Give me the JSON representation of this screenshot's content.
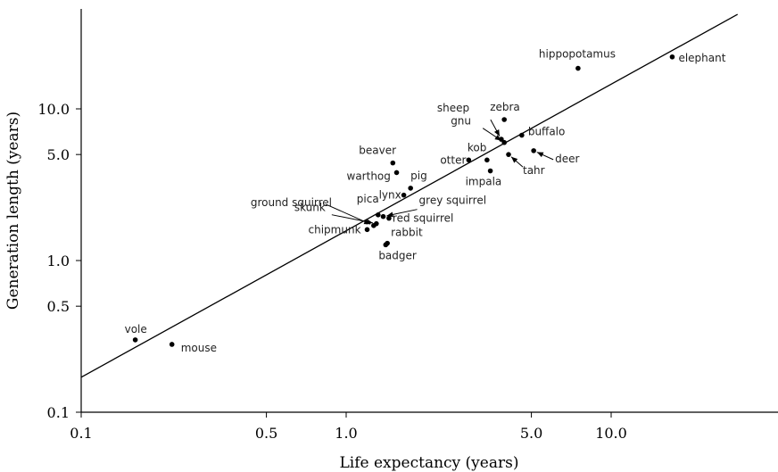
{
  "chart_data": {
    "type": "scatter",
    "title": "",
    "xlabel": "Life expectancy (years)",
    "ylabel": "Generation length (years)",
    "xscale": "log",
    "yscale": "log",
    "xlim": [
      0.1,
      30
    ],
    "ylim": [
      0.1,
      40
    ],
    "xticks": [
      {
        "value": 0.1,
        "label": "0.1"
      },
      {
        "value": 0.5,
        "label": "0.5"
      },
      {
        "value": 1.0,
        "label": "1.0"
      },
      {
        "value": 5.0,
        "label": "5.0"
      },
      {
        "value": 10.0,
        "label": "10.0"
      }
    ],
    "yticks": [
      {
        "value": 0.1,
        "label": "0.1"
      },
      {
        "value": 0.5,
        "label": "0.5"
      },
      {
        "value": 1.0,
        "label": "1.0"
      },
      {
        "value": 5.0,
        "label": "5.0"
      },
      {
        "value": 10.0,
        "label": "10.0"
      }
    ],
    "grid": false,
    "legend": "none",
    "fit_line": {
      "x": [
        0.1,
        30
      ],
      "y": [
        0.17,
        42
      ]
    },
    "points": [
      {
        "label": "vole",
        "x": 0.16,
        "y": 0.3
      },
      {
        "label": "mouse",
        "x": 0.22,
        "y": 0.28
      },
      {
        "label": "chipmunk",
        "x": 1.2,
        "y": 1.6
      },
      {
        "label": "skunk",
        "x": 1.3,
        "y": 1.75
      },
      {
        "label": "pica",
        "x": 1.32,
        "y": 2.0
      },
      {
        "label": "ground squirrel",
        "x": 1.27,
        "y": 1.7
      },
      {
        "label": "red squirrel",
        "x": 1.45,
        "y": 1.9
      },
      {
        "label": "grey squirrel",
        "x": 1.38,
        "y": 1.95
      },
      {
        "label": "rabbit",
        "x": 1.43,
        "y": 1.3
      },
      {
        "label": "badger",
        "x": 1.41,
        "y": 1.27
      },
      {
        "label": "lynx",
        "x": 1.65,
        "y": 2.7
      },
      {
        "label": "pig",
        "x": 1.75,
        "y": 3.0
      },
      {
        "label": "beaver",
        "x": 1.5,
        "y": 4.4
      },
      {
        "label": "warthog",
        "x": 1.55,
        "y": 3.8
      },
      {
        "label": "otter",
        "x": 2.9,
        "y": 4.6
      },
      {
        "label": "kob",
        "x": 3.4,
        "y": 4.6
      },
      {
        "label": "impala",
        "x": 3.5,
        "y": 3.9
      },
      {
        "label": "gnu",
        "x": 3.95,
        "y": 6.0
      },
      {
        "label": "sheep",
        "x": 3.85,
        "y": 6.3
      },
      {
        "label": "zebra",
        "x": 3.95,
        "y": 8.5
      },
      {
        "label": "tahr",
        "x": 4.1,
        "y": 5.0
      },
      {
        "label": "buffalo",
        "x": 4.6,
        "y": 6.7
      },
      {
        "label": "deer",
        "x": 5.1,
        "y": 5.3
      },
      {
        "label": "hippopotamus",
        "x": 7.5,
        "y": 18.5
      },
      {
        "label": "elephant",
        "x": 17.0,
        "y": 22.0
      }
    ]
  }
}
